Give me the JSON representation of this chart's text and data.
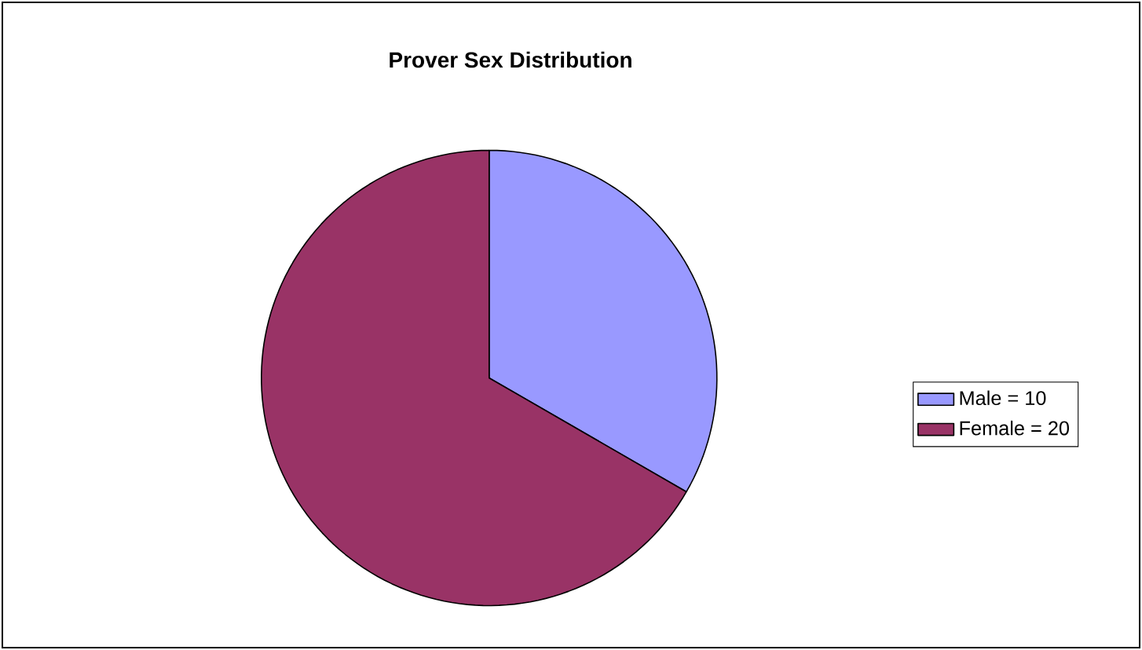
{
  "chart_data": {
    "type": "pie",
    "title": "Prover Sex Distribution",
    "categories": [
      "Male = 10",
      "Female = 20"
    ],
    "values": [
      10,
      20
    ],
    "colors": [
      "#9999ff",
      "#993366"
    ],
    "legend": "right"
  }
}
